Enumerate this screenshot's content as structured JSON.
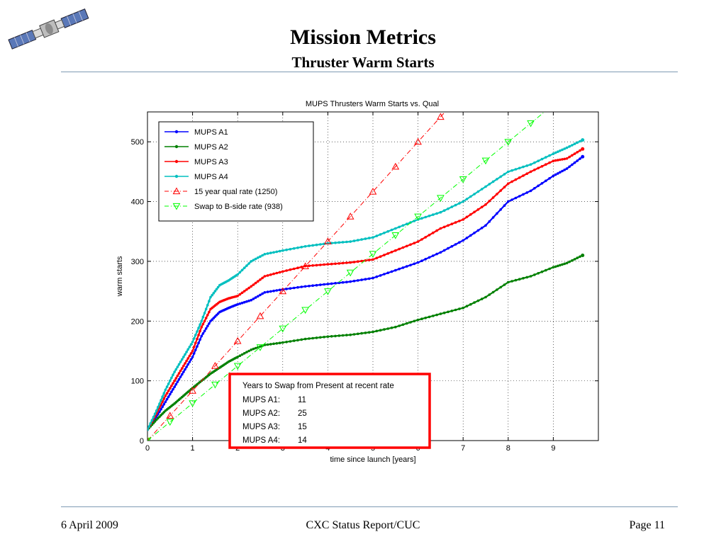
{
  "slide": {
    "title": "Mission Metrics",
    "subtitle": "Thruster Warm Starts"
  },
  "footer": {
    "date": "6 April 2009",
    "report": "CXC Status Report/CUC",
    "page": "Page 11"
  },
  "colors": {
    "rule": "#7f9bb3",
    "a1": "#0000ff",
    "a2": "#008000",
    "a3": "#ff0000",
    "a4": "#00bfbf",
    "qual": "#ff0000",
    "swap": "#00ff00",
    "callout_border": "#ff0000"
  },
  "logo_icon": "satellite-icon",
  "chart_data": {
    "type": "line",
    "title": "MUPS Thrusters Warm Starts vs. Qual",
    "xlabel": "time since launch [years]",
    "ylabel": "warm starts",
    "xlim": [
      0,
      10
    ],
    "ylim": [
      0,
      550
    ],
    "xticks": [
      0,
      1,
      2,
      3,
      4,
      5,
      6,
      7,
      8,
      9
    ],
    "yticks": [
      0,
      100,
      200,
      300,
      400,
      500
    ],
    "grid": true,
    "legend_position": "top-left",
    "series": [
      {
        "name": "MUPS A1",
        "color": "#0000ff",
        "marker": "dot",
        "style": "solid",
        "x": [
          0,
          0.2,
          0.4,
          0.6,
          0.8,
          1.0,
          1.2,
          1.4,
          1.6,
          1.8,
          2.0,
          2.3,
          2.6,
          3.0,
          3.5,
          4.0,
          4.5,
          5.0,
          5.5,
          6.0,
          6.5,
          7.0,
          7.5,
          8.0,
          8.5,
          9.0,
          9.3,
          9.65
        ],
        "y": [
          18,
          40,
          65,
          90,
          115,
          140,
          175,
          200,
          215,
          222,
          228,
          235,
          248,
          253,
          258,
          262,
          266,
          272,
          285,
          298,
          315,
          335,
          360,
          400,
          418,
          443,
          455,
          475
        ]
      },
      {
        "name": "MUPS A2",
        "color": "#008000",
        "marker": "dot",
        "style": "solid",
        "x": [
          0,
          0.2,
          0.4,
          0.6,
          0.8,
          1.0,
          1.2,
          1.4,
          1.6,
          1.8,
          2.0,
          2.3,
          2.6,
          3.0,
          3.5,
          4.0,
          4.5,
          5.0,
          5.5,
          6.0,
          6.5,
          7.0,
          7.5,
          8.0,
          8.5,
          9.0,
          9.3,
          9.65
        ],
        "y": [
          18,
          35,
          50,
          62,
          75,
          88,
          100,
          112,
          122,
          132,
          140,
          152,
          160,
          164,
          170,
          174,
          177,
          182,
          190,
          202,
          212,
          222,
          240,
          265,
          275,
          290,
          297,
          310
        ]
      },
      {
        "name": "MUPS A3",
        "color": "#ff0000",
        "marker": "dot",
        "style": "solid",
        "x": [
          0,
          0.2,
          0.4,
          0.6,
          0.8,
          1.0,
          1.2,
          1.4,
          1.6,
          1.8,
          2.0,
          2.3,
          2.6,
          3.0,
          3.5,
          4.0,
          4.5,
          5.0,
          5.5,
          6.0,
          6.5,
          7.0,
          7.5,
          8.0,
          8.5,
          9.0,
          9.3,
          9.65
        ],
        "y": [
          18,
          45,
          75,
          100,
          125,
          150,
          190,
          220,
          232,
          238,
          242,
          258,
          275,
          283,
          292,
          295,
          298,
          303,
          318,
          333,
          355,
          370,
          395,
          430,
          450,
          468,
          472,
          488
        ]
      },
      {
        "name": "MUPS A4",
        "color": "#00bfbf",
        "marker": "dot",
        "style": "solid",
        "x": [
          0,
          0.2,
          0.4,
          0.6,
          0.8,
          1.0,
          1.2,
          1.4,
          1.6,
          1.8,
          2.0,
          2.3,
          2.6,
          3.0,
          3.5,
          4.0,
          4.5,
          5.0,
          5.5,
          6.0,
          6.5,
          7.0,
          7.5,
          8.0,
          8.5,
          9.0,
          9.3,
          9.65
        ],
        "y": [
          18,
          50,
          85,
          115,
          140,
          165,
          200,
          240,
          260,
          268,
          278,
          300,
          312,
          318,
          325,
          330,
          333,
          340,
          355,
          370,
          382,
          400,
          425,
          450,
          462,
          480,
          490,
          503
        ]
      },
      {
        "name": "15 year qual rate (1250)",
        "color": "#ff0000",
        "marker": "triangle-up",
        "style": "dashdot",
        "x": [
          0,
          6.9
        ],
        "y": [
          0,
          575
        ],
        "marker_x": [
          0.5,
          1.0,
          1.5,
          2.0,
          2.5,
          3.0,
          3.5,
          4.0,
          4.5,
          5.0,
          5.5,
          6.0,
          6.5
        ]
      },
      {
        "name": "Swap to B-side rate (938)",
        "color": "#00ff00",
        "marker": "triangle-down",
        "style": "dashdot",
        "x": [
          0,
          8.9
        ],
        "y": [
          0,
          556
        ],
        "marker_x": [
          0.5,
          1.0,
          1.5,
          2.0,
          2.5,
          3.0,
          3.5,
          4.0,
          4.5,
          5.0,
          5.5,
          6.0,
          6.5,
          7.0,
          7.5,
          8.0,
          8.5
        ]
      }
    ],
    "annotation": {
      "heading": "Years to Swap from Present at recent rate",
      "rows": [
        {
          "label": "MUPS A1:",
          "value": "11"
        },
        {
          "label": "MUPS A2:",
          "value": "25"
        },
        {
          "label": "MUPS A3:",
          "value": "15"
        },
        {
          "label": "MUPS A4:",
          "value": "14"
        }
      ]
    }
  }
}
